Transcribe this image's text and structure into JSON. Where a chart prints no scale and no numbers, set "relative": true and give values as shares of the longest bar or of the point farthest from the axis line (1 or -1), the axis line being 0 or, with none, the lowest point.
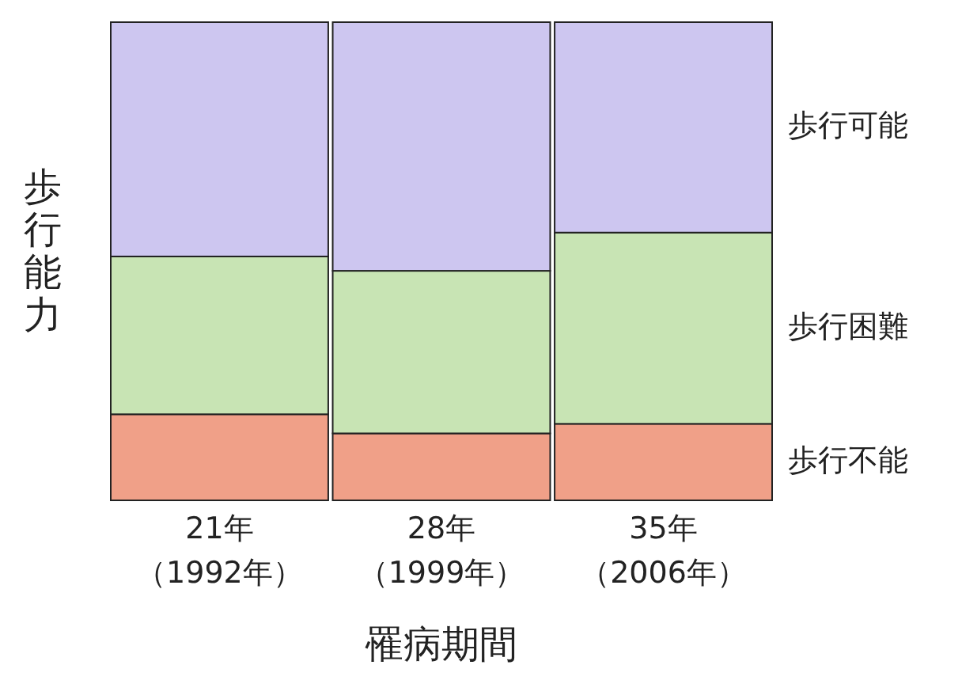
{
  "chart_data": {
    "type": "bar",
    "stacked": true,
    "relative": true,
    "xlabel": "罹病期間",
    "ylabel": "歩行能力",
    "categories": [
      "21年（1992年）",
      "28年（1999年）",
      "35年（2006年）"
    ],
    "series": [
      {
        "name": "歩行不能",
        "color": "#f0a088",
        "values": [
          0.18,
          0.14,
          0.16
        ]
      },
      {
        "name": "歩行困難",
        "color": "#c8e4b4",
        "values": [
          0.33,
          0.34,
          0.4
        ]
      },
      {
        "name": "歩行可能",
        "color": "#cdc6f0",
        "values": [
          0.49,
          0.52,
          0.44
        ]
      }
    ]
  }
}
